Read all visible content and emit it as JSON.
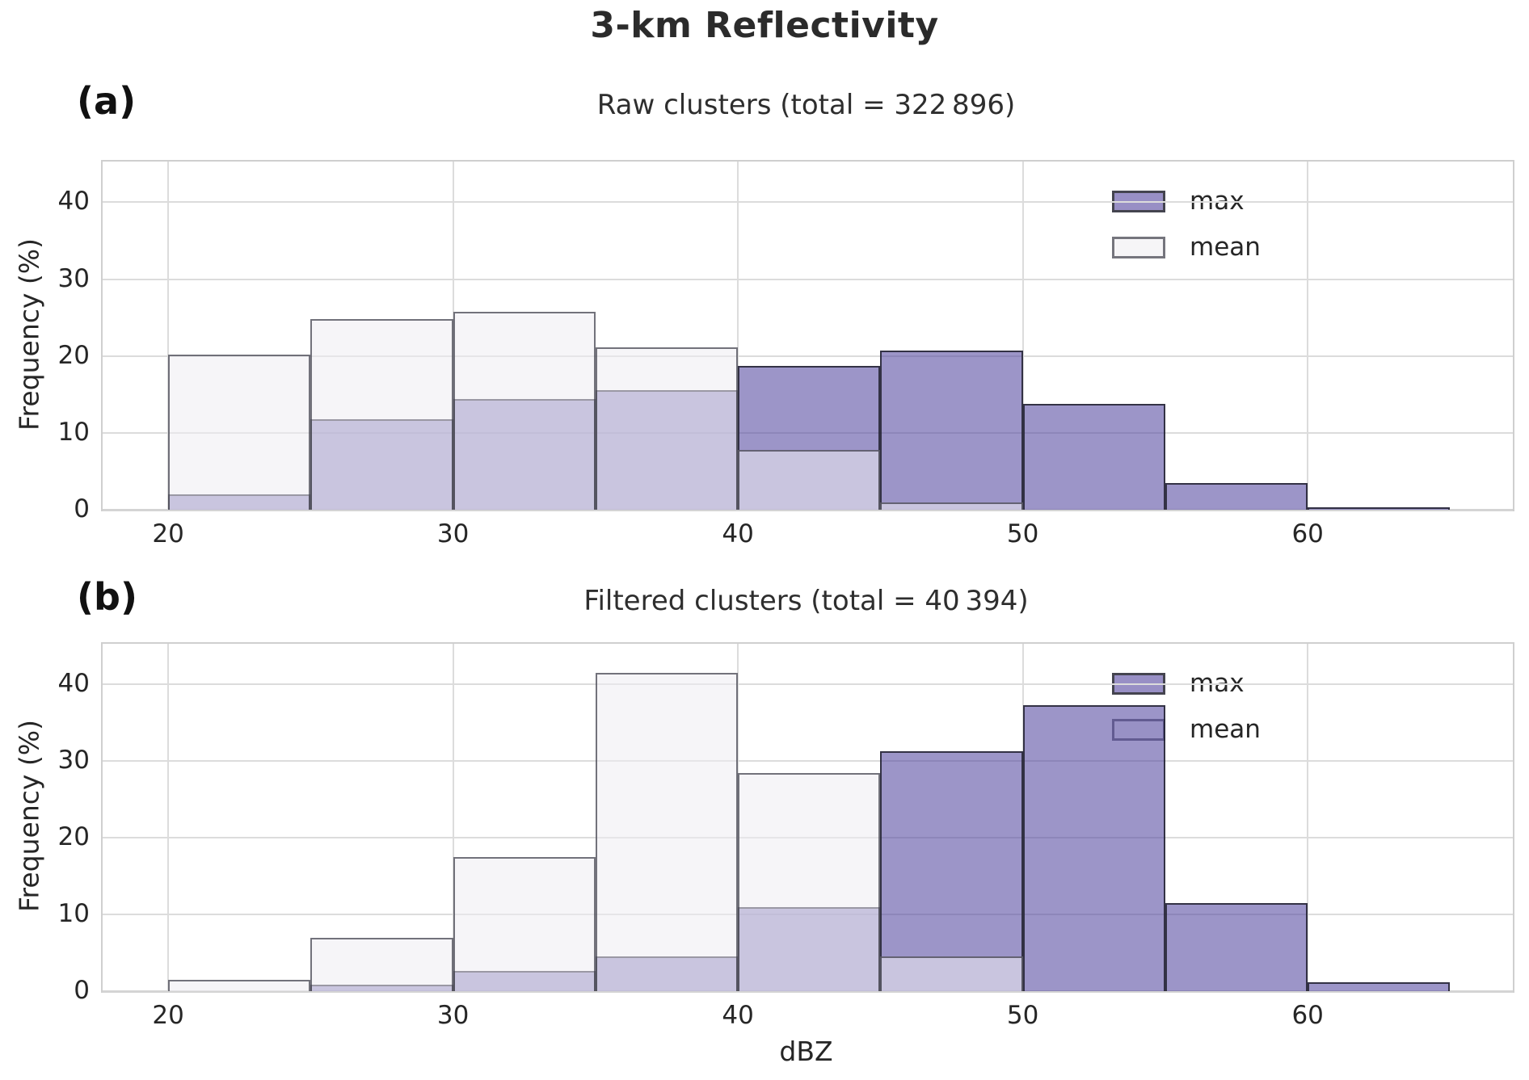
{
  "figure": {
    "title": "3-km Reflectivity",
    "xlabel": "dBZ",
    "ylabel": "Frequency (%)"
  },
  "legend": {
    "items": [
      {
        "label": "max",
        "color": "#988fc5"
      },
      {
        "label": "mean",
        "color": "#f6f5f7"
      }
    ]
  },
  "colors": {
    "max_fill_effective": "#9891c6",
    "mean_fill_effective": "#f6f5f7",
    "overlap_effective": "#c8c4dc",
    "bar_edge": "#2a2a36",
    "grid": "#dcdcdc",
    "spine": "#cfcfcf",
    "text": "#262626"
  },
  "chart_data": [
    {
      "type": "bar",
      "panel_label": "(a)",
      "title": "Raw clusters (total = 322 896)",
      "xlabel": "",
      "ylabel": "Frequency (%)",
      "bin_edges": [
        20,
        25,
        30,
        35,
        40,
        45,
        50,
        55,
        60,
        65
      ],
      "series": [
        {
          "name": "max",
          "values": [
            2.0,
            11.8,
            14.4,
            15.6,
            18.7,
            20.7,
            13.8,
            3.5,
            0.3
          ]
        },
        {
          "name": "mean",
          "values": [
            20.2,
            24.8,
            25.8,
            21.1,
            7.8,
            0.9,
            0.1,
            0.05,
            0.05
          ]
        }
      ],
      "xlim": [
        17.7,
        67.2
      ],
      "ylim": [
        0,
        45.3
      ],
      "xticks": [
        20,
        30,
        40,
        50,
        60
      ],
      "yticks": [
        0,
        10,
        20,
        30,
        40
      ],
      "grid": true,
      "legend_position": "upper right"
    },
    {
      "type": "bar",
      "panel_label": "(b)",
      "title": "Filtered clusters (total = 40 394)",
      "xlabel": "dBZ",
      "ylabel": "Frequency (%)",
      "bin_edges": [
        20,
        25,
        30,
        35,
        40,
        45,
        50,
        55,
        60,
        65
      ],
      "series": [
        {
          "name": "max",
          "values": [
            0.1,
            0.8,
            2.6,
            4.5,
            11.0,
            31.3,
            37.3,
            11.5,
            1.2
          ]
        },
        {
          "name": "mean",
          "values": [
            1.5,
            7.0,
            17.5,
            41.5,
            28.4,
            4.5,
            0.1,
            0.1,
            0.05
          ]
        }
      ],
      "xlim": [
        17.7,
        67.2
      ],
      "ylim": [
        0,
        45.3
      ],
      "xticks": [
        20,
        30,
        40,
        50,
        60
      ],
      "yticks": [
        0,
        10,
        20,
        30,
        40
      ],
      "grid": true,
      "legend_position": "upper right"
    }
  ]
}
